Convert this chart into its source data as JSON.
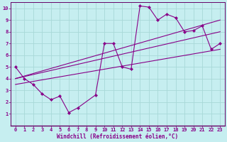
{
  "xlabel": "Windchill (Refroidissement éolien,°C)",
  "bg_color": "#c6eef0",
  "line_color": "#880088",
  "grid_color": "#a8d8d8",
  "spine_color": "#660066",
  "xlim": [
    -0.5,
    23.5
  ],
  "ylim": [
    0,
    10.5
  ],
  "xticks": [
    0,
    1,
    2,
    3,
    4,
    5,
    6,
    7,
    8,
    9,
    10,
    11,
    12,
    13,
    14,
    15,
    16,
    17,
    18,
    19,
    20,
    21,
    22,
    23
  ],
  "yticks": [
    1,
    2,
    3,
    4,
    5,
    6,
    7,
    8,
    9,
    10
  ],
  "line1_x": [
    0,
    1,
    2,
    3,
    4,
    5,
    6,
    7,
    9,
    10,
    11,
    12,
    13,
    14,
    15,
    16,
    17,
    18,
    19,
    20,
    21,
    22,
    23
  ],
  "line1_y": [
    5.0,
    4.0,
    3.5,
    2.7,
    2.2,
    2.5,
    1.1,
    1.5,
    2.6,
    7.0,
    7.0,
    5.0,
    4.8,
    10.2,
    10.1,
    9.0,
    9.5,
    9.2,
    8.0,
    8.1,
    8.5,
    6.5,
    7.0
  ],
  "line2_x": [
    0,
    23
  ],
  "line2_y": [
    4.0,
    9.0
  ],
  "line3_x": [
    0,
    23
  ],
  "line3_y": [
    3.5,
    6.5
  ],
  "line4_x": [
    0,
    23
  ],
  "line4_y": [
    4.0,
    8.0
  ],
  "tick_fontsize": 5,
  "xlabel_fontsize": 5.5
}
